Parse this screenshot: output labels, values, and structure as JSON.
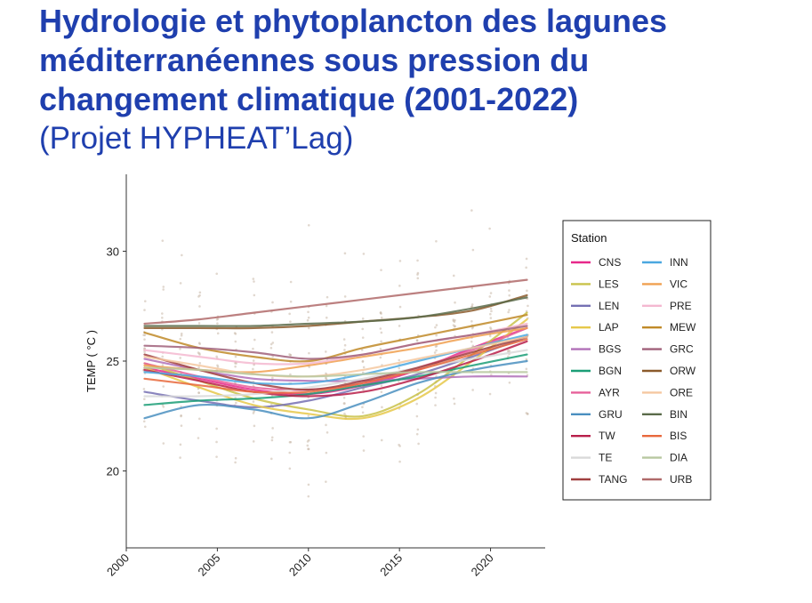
{
  "header": {
    "title_lines": [
      "Hydrologie et phytoplancton des lagunes",
      "méditerranéennes sous pression du",
      "changement climatique (2001-2022)"
    ],
    "subtitle": "(Projet HYPHEAT’Lag)"
  },
  "chart_data": {
    "type": "line",
    "ylabel": "TEMP ( °C )",
    "xlabel": "",
    "xlim": [
      2000,
      2023
    ],
    "ylim": [
      16.5,
      33.5
    ],
    "x_ticks": [
      2000,
      2005,
      2010,
      2015,
      2020
    ],
    "y_ticks": [
      20,
      25,
      30
    ],
    "grid": false,
    "legend": {
      "title": "Station",
      "placement": "right"
    },
    "x": [
      2001,
      2004,
      2007,
      2010,
      2013,
      2016,
      2019,
      2022
    ],
    "series": [
      {
        "name": "CNS",
        "color": "#e7298a",
        "values": [
          24.7,
          24.2,
          23.7,
          23.5,
          23.9,
          24.6,
          25.6,
          26.5
        ]
      },
      {
        "name": "LES",
        "color": "#c9c24a",
        "values": [
          24.9,
          24.1,
          23.3,
          22.8,
          22.5,
          23.5,
          25.3,
          27.2
        ]
      },
      {
        "name": "LEN",
        "color": "#7570b3",
        "values": [
          23.6,
          23.2,
          22.9,
          23.2,
          23.8,
          24.4,
          25.2,
          26.1
        ]
      },
      {
        "name": "LAP",
        "color": "#e6c84a",
        "values": [
          24.7,
          23.8,
          23.0,
          22.6,
          22.4,
          23.3,
          25.0,
          26.9
        ]
      },
      {
        "name": "BGS",
        "color": "#b070b8",
        "values": [
          25.1,
          24.6,
          24.2,
          24.1,
          24.1,
          24.2,
          24.3,
          24.3
        ]
      },
      {
        "name": "BGN",
        "color": "#1b9e77",
        "values": [
          23.0,
          23.2,
          23.3,
          23.5,
          23.9,
          24.3,
          24.8,
          25.3
        ]
      },
      {
        "name": "AYR",
        "color": "#e7609a",
        "values": [
          24.9,
          24.3,
          23.8,
          23.7,
          24.0,
          24.7,
          25.5,
          26.5
        ]
      },
      {
        "name": "GRU",
        "color": "#4a8fc0",
        "values": [
          22.4,
          23.0,
          22.8,
          22.4,
          23.1,
          24.0,
          24.6,
          25.0
        ]
      },
      {
        "name": "TW",
        "color": "#b81e4a",
        "values": [
          24.6,
          24.1,
          23.6,
          23.4,
          23.6,
          24.2,
          25.0,
          25.9
        ]
      },
      {
        "name": "TE",
        "color": "#d9d9d9",
        "values": [
          23.4,
          23.4,
          23.5,
          23.8,
          24.2,
          24.7,
          25.1,
          25.5
        ]
      },
      {
        "name": "TANG",
        "color": "#a04040",
        "values": [
          25.3,
          24.6,
          24.0,
          23.7,
          24.1,
          24.7,
          25.4,
          26.1
        ]
      },
      {
        "name": "INN",
        "color": "#4ba8e0",
        "values": [
          24.5,
          24.3,
          24.0,
          24.0,
          24.4,
          25.0,
          25.6,
          26.2
        ]
      },
      {
        "name": "VIC",
        "color": "#f0a050",
        "values": [
          24.8,
          24.6,
          24.5,
          24.8,
          25.2,
          25.6,
          26.1,
          26.5
        ]
      },
      {
        "name": "PRE",
        "color": "#f4b8d0",
        "values": [
          25.5,
          25.2,
          24.9,
          24.9,
          25.3,
          25.8,
          26.2,
          26.7
        ]
      },
      {
        "name": "MEW",
        "color": "#c08a28",
        "values": [
          26.3,
          25.6,
          25.2,
          25.0,
          25.6,
          26.1,
          26.6,
          27.1
        ]
      },
      {
        "name": "GRC",
        "color": "#a0607a",
        "values": [
          25.7,
          25.6,
          25.4,
          25.1,
          25.3,
          25.8,
          26.2,
          26.6
        ]
      },
      {
        "name": "ORW",
        "color": "#8b5a2b",
        "values": [
          26.5,
          26.5,
          26.5,
          26.6,
          26.8,
          27.0,
          27.3,
          28.0
        ]
      },
      {
        "name": "ORE",
        "color": "#f5c8a0",
        "values": [
          25.2,
          24.8,
          24.4,
          24.3,
          24.6,
          25.1,
          25.6,
          26.1
        ]
      },
      {
        "name": "BIN",
        "color": "#5a6b4a",
        "values": [
          26.6,
          26.6,
          26.6,
          26.7,
          26.8,
          27.0,
          27.4,
          27.9
        ]
      },
      {
        "name": "BIS",
        "color": "#e8683c",
        "values": [
          24.2,
          23.9,
          23.6,
          23.6,
          24.0,
          24.6,
          25.3,
          26.0
        ]
      },
      {
        "name": "DIA",
        "color": "#b8c8a0",
        "values": [
          24.7,
          24.6,
          24.4,
          24.3,
          24.4,
          24.5,
          24.5,
          24.5
        ]
      },
      {
        "name": "URB",
        "color": "#b06a6a",
        "values": [
          26.7,
          26.9,
          27.2,
          27.5,
          27.8,
          28.1,
          28.4,
          28.7
        ]
      }
    ]
  }
}
